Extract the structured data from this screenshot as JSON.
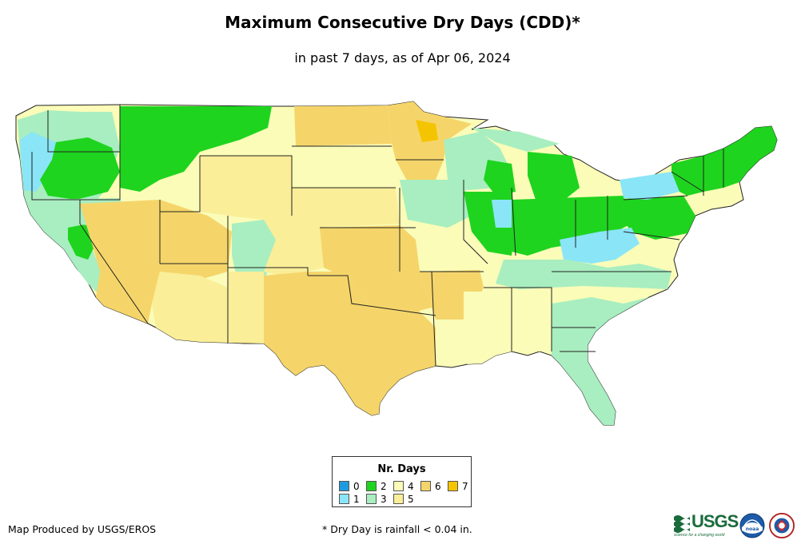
{
  "header": {
    "title": "Maximum Consecutive Dry Days (CDD)*",
    "subtitle": "in past 7 days, as of Apr 06, 2024"
  },
  "legend": {
    "title": "Nr. Days",
    "items": [
      {
        "label": "0",
        "color": "#1E9BE0"
      },
      {
        "label": "1",
        "color": "#8AE5F7"
      },
      {
        "label": "2",
        "color": "#1ED41E"
      },
      {
        "label": "3",
        "color": "#A8EEC0"
      },
      {
        "label": "4",
        "color": "#FAFCB8"
      },
      {
        "label": "5",
        "color": "#FAEE98"
      },
      {
        "label": "6",
        "color": "#F5D56A"
      },
      {
        "label": "7",
        "color": "#F5C400"
      }
    ]
  },
  "footer": {
    "credit": "Map Produced by USGS/EROS",
    "note": "* Dry Day is rainfall < 0.04 in."
  },
  "logos": {
    "usgs": {
      "text": "USGS",
      "tagline": "science for a changing world",
      "color": "#1a6b3c"
    },
    "noaa": {
      "text": "noaa"
    },
    "nws": {
      "text": "NATIONAL WEATHER SERVICE"
    }
  }
}
